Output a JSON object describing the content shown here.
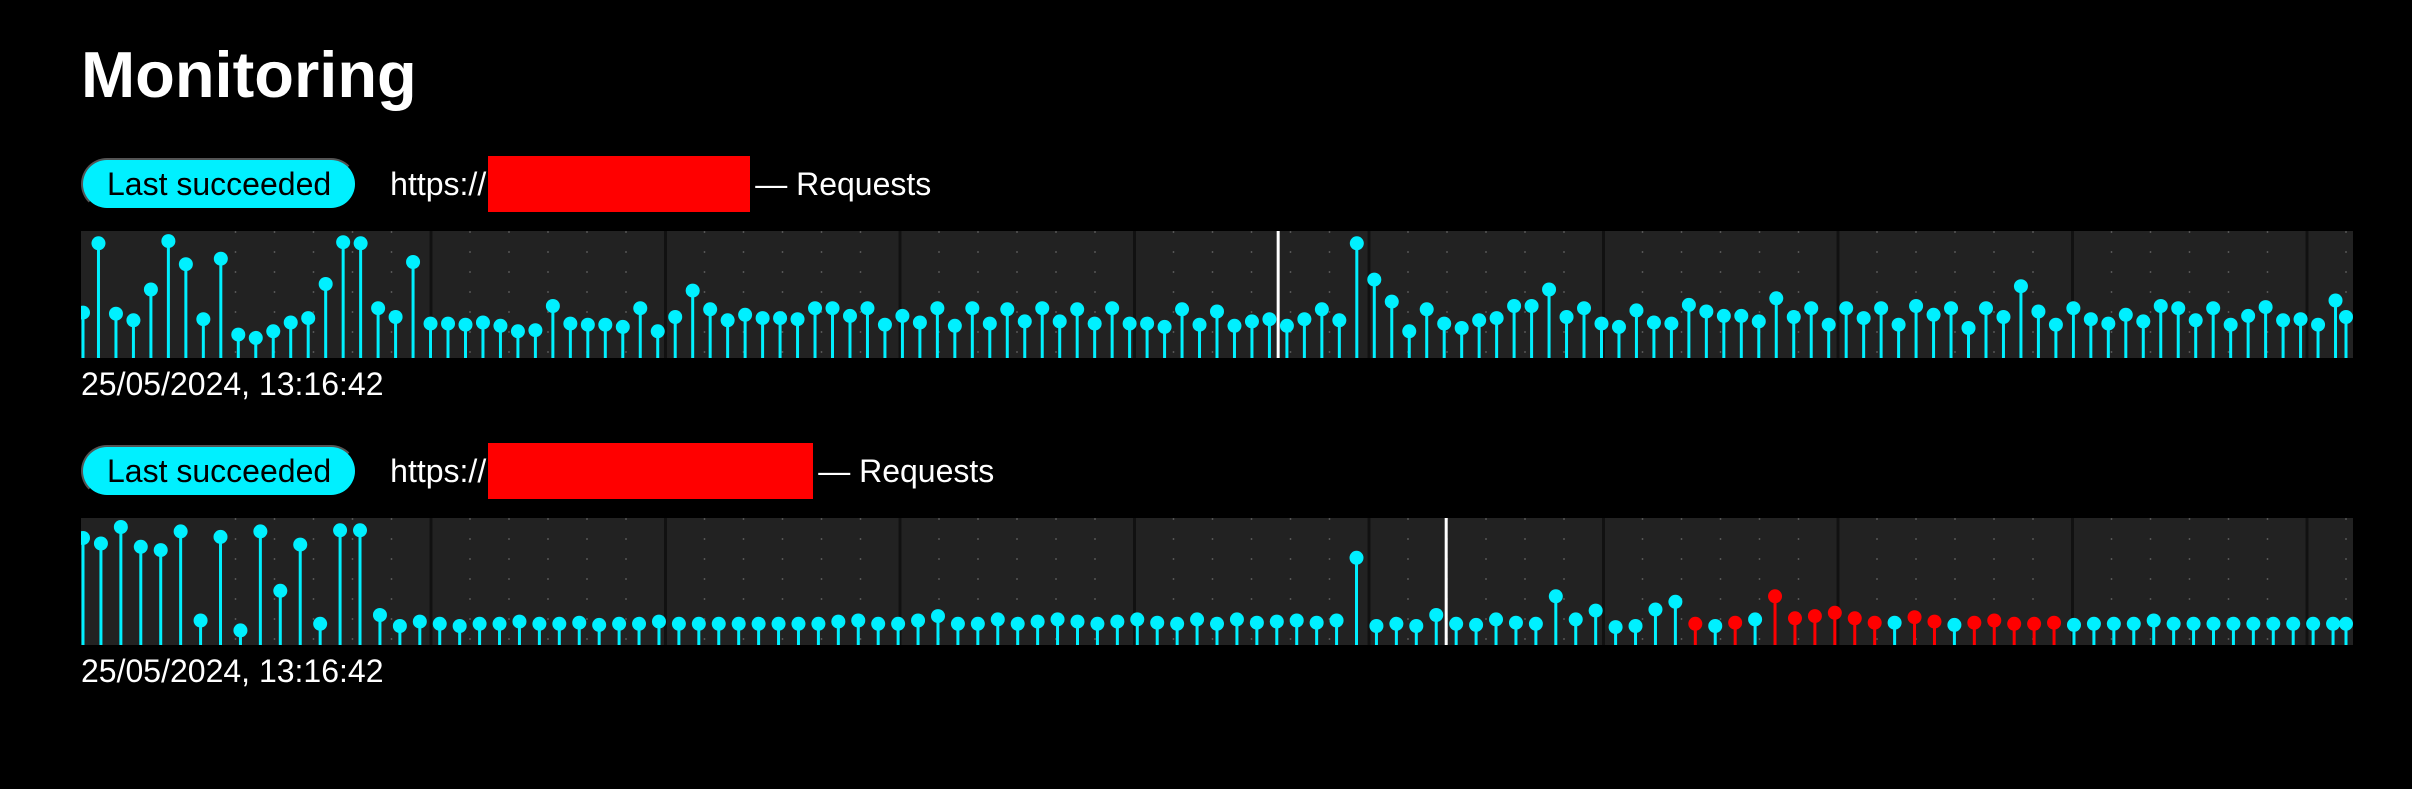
{
  "page": {
    "title": "Monitoring"
  },
  "colors": {
    "background": "#000000",
    "accent": "#00f0ff",
    "failure": "#ff0000",
    "chart_bg": "#222222",
    "now_marker": "#ffffff",
    "redaction": "#ff0000"
  },
  "monitors": [
    {
      "status": "Last succeeded",
      "url_prefix": "https://",
      "suffix": "— Requests",
      "timestamp": "25/05/2024, 13:16:42",
      "chart_data": {
        "type": "lollipop",
        "title": "",
        "xlabel": "",
        "ylabel": "",
        "ylim": [
          0,
          1
        ],
        "values": [
          0.34,
          0.97,
          0.33,
          0.27,
          0.55,
          0.99,
          0.78,
          0.28,
          0.83,
          0.14,
          0.11,
          0.17,
          0.25,
          0.29,
          0.6,
          0.98,
          0.97,
          0.38,
          0.3,
          0.8,
          0.24,
          0.24,
          0.23,
          0.25,
          0.22,
          0.17,
          0.18,
          0.4,
          0.24,
          0.23,
          0.23,
          0.21,
          0.38,
          0.17,
          0.3,
          0.54,
          0.37,
          0.27,
          0.32,
          0.29,
          0.29,
          0.28,
          0.38,
          0.38,
          0.31,
          0.38,
          0.23,
          0.31,
          0.25,
          0.38,
          0.22,
          0.38,
          0.24,
          0.37,
          0.26,
          0.38,
          0.26,
          0.37,
          0.24,
          0.38,
          0.24,
          0.24,
          0.21,
          0.37,
          0.23,
          0.35,
          0.22,
          0.26,
          0.28,
          0.22,
          0.28,
          0.37,
          0.27,
          0.97,
          0.64,
          0.44,
          0.17,
          0.37,
          0.24,
          0.2,
          0.27,
          0.29,
          0.4,
          0.4,
          0.55,
          0.3,
          0.38,
          0.24,
          0.21,
          0.36,
          0.25,
          0.24,
          0.41,
          0.35,
          0.31,
          0.31,
          0.26,
          0.47,
          0.3,
          0.38,
          0.23,
          0.38,
          0.29,
          0.38,
          0.23,
          0.4,
          0.32,
          0.38,
          0.2,
          0.38,
          0.3,
          0.58,
          0.35,
          0.23,
          0.38,
          0.28,
          0.24,
          0.32,
          0.26,
          0.4,
          0.38,
          0.27,
          0.38,
          0.23,
          0.31,
          0.39,
          0.27,
          0.28,
          0.23,
          0.45,
          0.3
        ],
        "failed_indices": [],
        "now_marker_index": 68
      }
    },
    {
      "status": "Last succeeded",
      "url_prefix": "https://",
      "suffix": "— Requests",
      "timestamp": "25/05/2024, 13:16:42",
      "chart_data": {
        "type": "lollipop",
        "title": "",
        "xlabel": "",
        "ylabel": "",
        "ylim": [
          0,
          1
        ],
        "values": [
          0.9,
          0.85,
          1.0,
          0.82,
          0.79,
          0.96,
          0.15,
          0.91,
          0.06,
          0.96,
          0.42,
          0.84,
          0.12,
          0.97,
          0.97,
          0.2,
          0.1,
          0.14,
          0.12,
          0.1,
          0.12,
          0.12,
          0.14,
          0.12,
          0.12,
          0.13,
          0.11,
          0.12,
          0.12,
          0.14,
          0.12,
          0.12,
          0.12,
          0.12,
          0.12,
          0.12,
          0.12,
          0.12,
          0.14,
          0.15,
          0.12,
          0.12,
          0.15,
          0.19,
          0.12,
          0.12,
          0.16,
          0.12,
          0.14,
          0.16,
          0.14,
          0.12,
          0.14,
          0.16,
          0.13,
          0.12,
          0.16,
          0.12,
          0.16,
          0.13,
          0.14,
          0.15,
          0.13,
          0.15,
          0.72,
          0.1,
          0.12,
          0.1,
          0.2,
          0.12,
          0.11,
          0.16,
          0.13,
          0.12,
          0.37,
          0.16,
          0.24,
          0.09,
          0.1,
          0.25,
          0.32,
          0.12,
          0.1,
          0.13,
          0.16,
          0.37,
          0.17,
          0.19,
          0.22,
          0.17,
          0.13,
          0.13,
          0.18,
          0.14,
          0.11,
          0.13,
          0.15,
          0.12,
          0.12,
          0.13,
          0.11,
          0.12,
          0.12,
          0.12,
          0.15,
          0.12,
          0.12,
          0.12,
          0.12,
          0.12,
          0.12,
          0.12,
          0.12,
          0.12,
          0.12
        ],
        "failed_indices": [
          81,
          83,
          85,
          86,
          87,
          88,
          89,
          90,
          92,
          93,
          95,
          96,
          97,
          98,
          99
        ],
        "now_marker_index": 68
      }
    }
  ]
}
